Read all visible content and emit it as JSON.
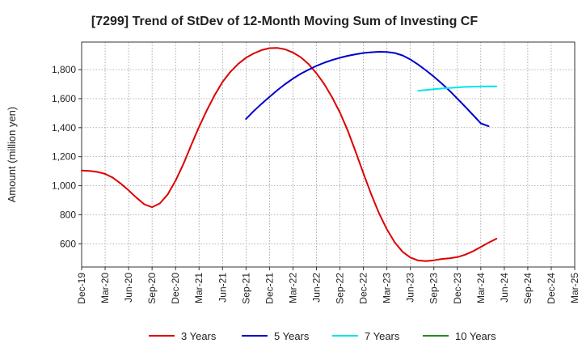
{
  "chart_data": {
    "type": "line",
    "title": "[7299]  Trend of StDev of 12-Month Moving Sum of Investing CF",
    "xlabel": "",
    "ylabel": "Amount (million yen)",
    "ylim": [
      440,
      1990
    ],
    "yticks": [
      600,
      800,
      1000,
      1200,
      1400,
      1600,
      1800
    ],
    "yticks_labels": [
      "600",
      "800",
      "1,000",
      "1,200",
      "1,400",
      "1,600",
      "1,800"
    ],
    "x_ticks": [
      "Dec-19",
      "Mar-20",
      "Jun-20",
      "Sep-20",
      "Dec-20",
      "Mar-21",
      "Jun-21",
      "Sep-21",
      "Dec-21",
      "Mar-22",
      "Jun-22",
      "Sep-22",
      "Dec-22",
      "Mar-23",
      "Jun-23",
      "Sep-23",
      "Dec-23",
      "Mar-24",
      "Jun-24",
      "Sep-24",
      "Dec-24",
      "Mar-25"
    ],
    "grid": true,
    "legend_position": "bottom",
    "series": [
      {
        "name": "3 Years",
        "color": "#dd0000",
        "points": [
          [
            "Dec-19",
            1105
          ],
          [
            "Jan-20",
            1102
          ],
          [
            "Feb-20",
            1095
          ],
          [
            "Mar-20",
            1082
          ],
          [
            "Apr-20",
            1055
          ],
          [
            "May-20",
            1015
          ],
          [
            "Jun-20",
            968
          ],
          [
            "Jul-20",
            918
          ],
          [
            "Aug-20",
            872
          ],
          [
            "Sep-20",
            852
          ],
          [
            "Oct-20",
            878
          ],
          [
            "Nov-20",
            940
          ],
          [
            "Dec-20",
            1035
          ],
          [
            "Jan-21",
            1150
          ],
          [
            "Feb-21",
            1280
          ],
          [
            "Mar-21",
            1405
          ],
          [
            "Apr-21",
            1520
          ],
          [
            "May-21",
            1625
          ],
          [
            "Jun-21",
            1715
          ],
          [
            "Jul-21",
            1785
          ],
          [
            "Aug-21",
            1840
          ],
          [
            "Sep-21",
            1882
          ],
          [
            "Oct-21",
            1912
          ],
          [
            "Nov-21",
            1935
          ],
          [
            "Dec-21",
            1948
          ],
          [
            "Jan-22",
            1950
          ],
          [
            "Feb-22",
            1940
          ],
          [
            "Mar-22",
            1918
          ],
          [
            "Apr-22",
            1885
          ],
          [
            "May-22",
            1838
          ],
          [
            "Jun-22",
            1775
          ],
          [
            "Jul-22",
            1700
          ],
          [
            "Aug-22",
            1610
          ],
          [
            "Sep-22",
            1505
          ],
          [
            "Oct-22",
            1380
          ],
          [
            "Nov-22",
            1235
          ],
          [
            "Dec-22",
            1085
          ],
          [
            "Jan-23",
            940
          ],
          [
            "Feb-23",
            810
          ],
          [
            "Mar-23",
            700
          ],
          [
            "Apr-23",
            610
          ],
          [
            "May-23",
            545
          ],
          [
            "Jun-23",
            505
          ],
          [
            "Jul-23",
            485
          ],
          [
            "Aug-23",
            480
          ],
          [
            "Sep-23",
            486
          ],
          [
            "Oct-23",
            495
          ],
          [
            "Nov-23",
            500
          ],
          [
            "Dec-23",
            508
          ],
          [
            "Jan-24",
            525
          ],
          [
            "Feb-24",
            548
          ],
          [
            "Mar-24",
            578
          ],
          [
            "Apr-24",
            608
          ],
          [
            "May-24",
            635
          ]
        ]
      },
      {
        "name": "5 Years",
        "color": "#0000cc",
        "points": [
          [
            "Sep-21",
            1460
          ],
          [
            "Oct-21",
            1515
          ],
          [
            "Nov-21",
            1565
          ],
          [
            "Dec-21",
            1612
          ],
          [
            "Jan-22",
            1658
          ],
          [
            "Feb-22",
            1700
          ],
          [
            "Mar-22",
            1738
          ],
          [
            "Apr-22",
            1772
          ],
          [
            "May-22",
            1800
          ],
          [
            "Jun-22",
            1826
          ],
          [
            "Jul-22",
            1848
          ],
          [
            "Aug-22",
            1866
          ],
          [
            "Sep-22",
            1882
          ],
          [
            "Oct-22",
            1895
          ],
          [
            "Nov-22",
            1906
          ],
          [
            "Dec-22",
            1915
          ],
          [
            "Jan-23",
            1920
          ],
          [
            "Feb-23",
            1923
          ],
          [
            "Mar-23",
            1922
          ],
          [
            "Apr-23",
            1915
          ],
          [
            "May-23",
            1898
          ],
          [
            "Jun-23",
            1870
          ],
          [
            "Jul-23",
            1835
          ],
          [
            "Aug-23",
            1795
          ],
          [
            "Sep-23",
            1752
          ],
          [
            "Oct-23",
            1705
          ],
          [
            "Nov-23",
            1655
          ],
          [
            "Dec-23",
            1600
          ],
          [
            "Jan-24",
            1545
          ],
          [
            "Feb-24",
            1488
          ],
          [
            "Mar-24",
            1430
          ],
          [
            "Apr-24",
            1410
          ]
        ]
      },
      {
        "name": "7 Years",
        "color": "#00e5ee",
        "points": [
          [
            "Jul-23",
            1655
          ],
          [
            "Aug-23",
            1660
          ],
          [
            "Sep-23",
            1665
          ],
          [
            "Oct-23",
            1670
          ],
          [
            "Nov-23",
            1674
          ],
          [
            "Dec-23",
            1678
          ],
          [
            "Jan-24",
            1681
          ],
          [
            "Feb-24",
            1683
          ],
          [
            "Mar-24",
            1684
          ],
          [
            "Apr-24",
            1685
          ],
          [
            "May-24",
            1685
          ]
        ]
      },
      {
        "name": "10 Years",
        "color": "#228b22",
        "points": []
      }
    ]
  }
}
